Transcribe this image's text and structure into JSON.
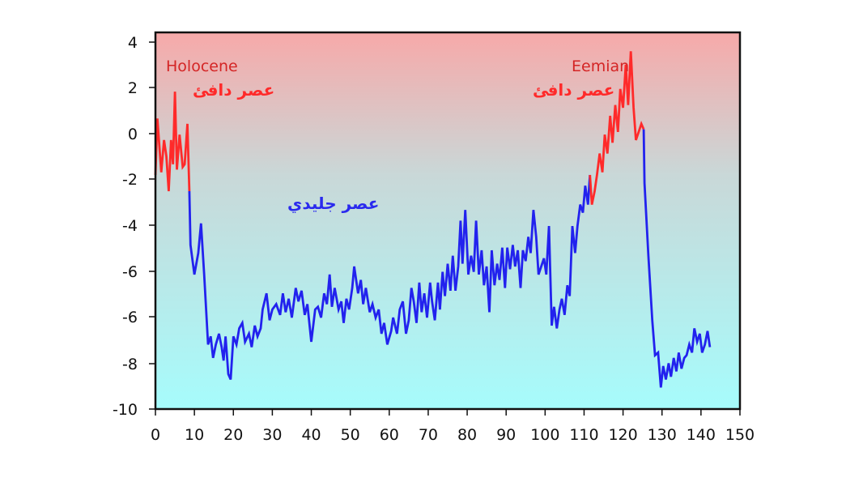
{
  "chart_data": {
    "type": "line",
    "title": "",
    "xlabel": "",
    "ylabel": "",
    "xlim": [
      0,
      150
    ],
    "ylim": [
      -10,
      4
    ],
    "x_ticks": [
      "0",
      "10",
      "20",
      "30",
      "40",
      "50",
      "60",
      "70",
      "80",
      "90",
      "100",
      "110",
      "120",
      "130",
      "140",
      "150"
    ],
    "y_ticks": [
      "4",
      "2",
      "0",
      "-2",
      "-4",
      "-6",
      "-6",
      "-8",
      "-10"
    ],
    "background_gradient": {
      "top": "#f7a9a9",
      "middle": "#c9d8d8",
      "bottom": "#a6fcfc"
    },
    "grid": false,
    "series": [
      {
        "name": "",
        "color_warm": "#ff2a2a",
        "color_cold": "#2222ee",
        "points": [
          [
            0,
            -1.3
          ],
          [
            0.5,
            0.8
          ],
          [
            1.5,
            -1.2
          ],
          [
            2.2,
            0.0
          ],
          [
            2.8,
            -0.6
          ],
          [
            3.4,
            -1.9
          ],
          [
            4,
            0.0
          ],
          [
            4.5,
            -0.9
          ],
          [
            5,
            1.8
          ],
          [
            5.5,
            -1.1
          ],
          [
            6.2,
            0.2
          ],
          [
            7,
            -1.0
          ],
          [
            7.5,
            -0.9
          ],
          [
            8.2,
            0.6
          ],
          [
            8.7,
            -1.9
          ],
          [
            9,
            -3.9
          ],
          [
            10,
            -5.0
          ],
          [
            11,
            -4.2
          ],
          [
            11.7,
            -3.1
          ],
          [
            12.5,
            -5.0
          ],
          [
            13.5,
            -7.6
          ],
          [
            14.2,
            -7.3
          ],
          [
            14.8,
            -8.1
          ],
          [
            15.5,
            -7.6
          ],
          [
            16.3,
            -7.2
          ],
          [
            17,
            -7.7
          ],
          [
            17.5,
            -8.2
          ],
          [
            18,
            -7.3
          ],
          [
            18.7,
            -8.7
          ],
          [
            19.3,
            -8.9
          ],
          [
            20,
            -7.3
          ],
          [
            20.8,
            -7.6
          ],
          [
            21.5,
            -7.0
          ],
          [
            22.3,
            -6.8
          ],
          [
            23,
            -7.5
          ],
          [
            24,
            -7.2
          ],
          [
            24.7,
            -7.7
          ],
          [
            25.5,
            -6.9
          ],
          [
            26.2,
            -7.3
          ],
          [
            27,
            -7.0
          ],
          [
            27.5,
            -6.3
          ],
          [
            28.5,
            -5.7
          ],
          [
            29.3,
            -6.7
          ],
          [
            30,
            -6.3
          ],
          [
            31,
            -6.1
          ],
          [
            32,
            -6.5
          ],
          [
            32.7,
            -5.7
          ],
          [
            33.4,
            -6.4
          ],
          [
            34.2,
            -5.9
          ],
          [
            35,
            -6.6
          ],
          [
            36,
            -5.5
          ],
          [
            36.7,
            -6.0
          ],
          [
            37.5,
            -5.6
          ],
          [
            38.3,
            -6.5
          ],
          [
            39,
            -6.1
          ],
          [
            40,
            -7.5
          ],
          [
            41,
            -6.3
          ],
          [
            41.7,
            -6.2
          ],
          [
            42.5,
            -6.6
          ],
          [
            43.3,
            -5.7
          ],
          [
            44,
            -6.1
          ],
          [
            44.7,
            -5.0
          ],
          [
            45.3,
            -6.2
          ],
          [
            46,
            -5.5
          ],
          [
            47,
            -6.3
          ],
          [
            47.7,
            -6.0
          ],
          [
            48.3,
            -6.8
          ],
          [
            49,
            -5.9
          ],
          [
            49.7,
            -6.3
          ],
          [
            50.5,
            -5.5
          ],
          [
            51,
            -4.7
          ],
          [
            52,
            -5.7
          ],
          [
            52.7,
            -5.2
          ],
          [
            53.3,
            -6.1
          ],
          [
            54,
            -5.5
          ],
          [
            55,
            -6.4
          ],
          [
            55.7,
            -6.1
          ],
          [
            56.5,
            -6.6
          ],
          [
            57.3,
            -6.3
          ],
          [
            58,
            -7.2
          ],
          [
            58.7,
            -6.8
          ],
          [
            59.5,
            -7.6
          ],
          [
            60.5,
            -7.1
          ],
          [
            61,
            -6.6
          ],
          [
            62,
            -7.2
          ],
          [
            62.7,
            -6.3
          ],
          [
            63.5,
            -6.0
          ],
          [
            64.3,
            -7.2
          ],
          [
            65,
            -6.7
          ],
          [
            65.7,
            -5.5
          ],
          [
            66.3,
            -6.0
          ],
          [
            67,
            -6.8
          ],
          [
            67.7,
            -5.3
          ],
          [
            68.3,
            -6.4
          ],
          [
            69,
            -5.7
          ],
          [
            69.7,
            -6.6
          ],
          [
            70.5,
            -5.3
          ],
          [
            71,
            -6.0
          ],
          [
            71.7,
            -6.7
          ],
          [
            72.5,
            -5.3
          ],
          [
            73,
            -6.3
          ],
          [
            73.7,
            -4.9
          ],
          [
            74.3,
            -5.8
          ],
          [
            75,
            -4.6
          ],
          [
            75.7,
            -5.6
          ],
          [
            76.3,
            -4.3
          ],
          [
            77,
            -5.6
          ],
          [
            77.7,
            -4.7
          ],
          [
            78.3,
            -3.0
          ],
          [
            78.8,
            -4.6
          ],
          [
            79.5,
            -2.6
          ],
          [
            80.3,
            -5.0
          ],
          [
            81,
            -4.3
          ],
          [
            81.7,
            -4.9
          ],
          [
            82.3,
            -3.0
          ],
          [
            83,
            -5.0
          ],
          [
            83.7,
            -4.1
          ],
          [
            84.3,
            -5.4
          ],
          [
            85,
            -4.7
          ],
          [
            85.7,
            -6.4
          ],
          [
            86.3,
            -4.1
          ],
          [
            87,
            -5.4
          ],
          [
            87.7,
            -4.6
          ],
          [
            88.3,
            -5.2
          ],
          [
            89,
            -4.0
          ],
          [
            89.7,
            -5.5
          ],
          [
            90.3,
            -4.0
          ],
          [
            91,
            -4.8
          ],
          [
            91.7,
            -3.9
          ],
          [
            92.3,
            -4.7
          ],
          [
            93,
            -4.1
          ],
          [
            93.7,
            -5.5
          ],
          [
            94.3,
            -4.1
          ],
          [
            95,
            -4.5
          ],
          [
            95.7,
            -3.6
          ],
          [
            96.3,
            -4.2
          ],
          [
            97,
            -2.6
          ],
          [
            97.7,
            -3.6
          ],
          [
            98.3,
            -5.0
          ],
          [
            99,
            -4.7
          ],
          [
            99.7,
            -4.4
          ],
          [
            100.3,
            -5.0
          ],
          [
            101,
            -3.2
          ],
          [
            101.7,
            -6.9
          ],
          [
            102.3,
            -6.2
          ],
          [
            103,
            -7.0
          ],
          [
            103.7,
            -6.3
          ],
          [
            104.3,
            -5.9
          ],
          [
            105,
            -6.5
          ],
          [
            105.7,
            -5.4
          ],
          [
            106.3,
            -5.8
          ],
          [
            107,
            -3.2
          ],
          [
            107.7,
            -4.2
          ],
          [
            108.3,
            -3.2
          ],
          [
            109,
            -2.4
          ],
          [
            109.7,
            -2.7
          ],
          [
            110.3,
            -1.7
          ],
          [
            111,
            -2.4
          ],
          [
            111.5,
            -1.3
          ],
          [
            112,
            -2.4
          ],
          [
            112.7,
            -1.9
          ],
          [
            113.3,
            -1.3
          ],
          [
            114,
            -0.5
          ],
          [
            114.7,
            -1.2
          ],
          [
            115.3,
            0.2
          ],
          [
            116,
            -0.5
          ],
          [
            116.7,
            0.9
          ],
          [
            117.3,
            -0.1
          ],
          [
            118,
            1.3
          ],
          [
            118.7,
            0.3
          ],
          [
            119.3,
            1.9
          ],
          [
            120,
            1.2
          ],
          [
            120.7,
            2.8
          ],
          [
            121.3,
            1.3
          ],
          [
            122,
            3.3
          ],
          [
            122.7,
            1.2
          ],
          [
            123.3,
            0.0
          ],
          [
            124,
            0.3
          ],
          [
            124.7,
            0.6
          ],
          [
            125.3,
            0.4
          ],
          [
            125.5,
            -1.6
          ],
          [
            126.5,
            -4.3
          ],
          [
            127.5,
            -6.7
          ],
          [
            128.2,
            -8.0
          ],
          [
            129,
            -7.9
          ],
          [
            129.7,
            -9.2
          ],
          [
            130.3,
            -8.4
          ],
          [
            131,
            -8.9
          ],
          [
            131.7,
            -8.3
          ],
          [
            132.3,
            -8.8
          ],
          [
            133,
            -8.1
          ],
          [
            133.7,
            -8.6
          ],
          [
            134.3,
            -7.9
          ],
          [
            135,
            -8.5
          ],
          [
            135.7,
            -8.1
          ],
          [
            136.3,
            -8.0
          ],
          [
            137,
            -7.6
          ],
          [
            137.7,
            -7.9
          ],
          [
            138.3,
            -7.0
          ],
          [
            139,
            -7.5
          ],
          [
            139.7,
            -7.2
          ],
          [
            140.3,
            -7.9
          ],
          [
            141,
            -7.6
          ],
          [
            141.7,
            -7.1
          ],
          [
            142.3,
            -7.7
          ]
        ]
      }
    ],
    "annotations": [
      {
        "text": "Holocene",
        "color": "#d42525",
        "anchor": "top-left"
      },
      {
        "text": "عصر دافئ",
        "color": "#ff2a2a",
        "anchor": "top-left"
      },
      {
        "text": "Eemian",
        "color": "#d42525",
        "anchor": "top-right"
      },
      {
        "text": "عصر دافئ",
        "color": "#ff2a2a",
        "anchor": "top-right"
      },
      {
        "text": "عصر جليدي",
        "color": "#2a2aee",
        "anchor": "center-left"
      }
    ]
  }
}
